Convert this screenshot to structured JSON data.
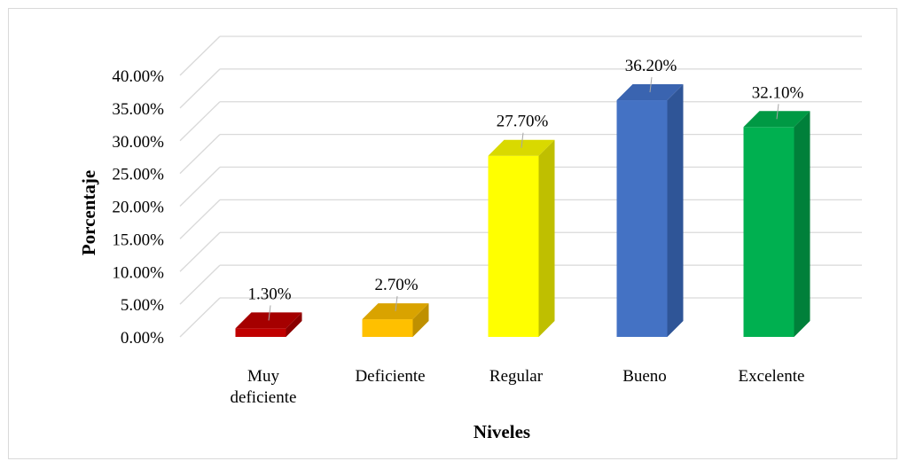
{
  "chart_data": {
    "type": "bar",
    "style": "3d-column",
    "categories": [
      "Muy deficiente",
      "Deficiente",
      "Regular",
      "Bueno",
      "Excelente"
    ],
    "category_lines": [
      [
        "Muy",
        "deficiente"
      ],
      [
        "Deficiente"
      ],
      [
        "Regular"
      ],
      [
        "Bueno"
      ],
      [
        "Excelente"
      ]
    ],
    "values": [
      1.3,
      2.7,
      27.7,
      36.2,
      32.1
    ],
    "data_labels": [
      "1.30%",
      "2.70%",
      "27.70%",
      "36.20%",
      "32.10%"
    ],
    "colors": [
      "#c00000",
      "#ffc000",
      "#ffff00",
      "#4472c4",
      "#00b050"
    ],
    "side_colors": [
      "#8b0000",
      "#bf9000",
      "#bfbf00",
      "#2f5597",
      "#00803a"
    ],
    "top_colors": [
      "#a50000",
      "#d9a300",
      "#d9d900",
      "#3a64b0",
      "#009944"
    ],
    "xlabel": "Niveles",
    "ylabel": "Porcentaje",
    "ylim": [
      0,
      40
    ],
    "yticks": [
      0,
      5,
      10,
      15,
      20,
      25,
      30,
      35,
      40
    ],
    "ytick_labels": [
      "0.00%",
      "5.00%",
      "10.00%",
      "15.00%",
      "20.00%",
      "25.00%",
      "30.00%",
      "35.00%",
      "40.00%"
    ],
    "grid": true,
    "gridline_color": "#d9d9d9"
  }
}
